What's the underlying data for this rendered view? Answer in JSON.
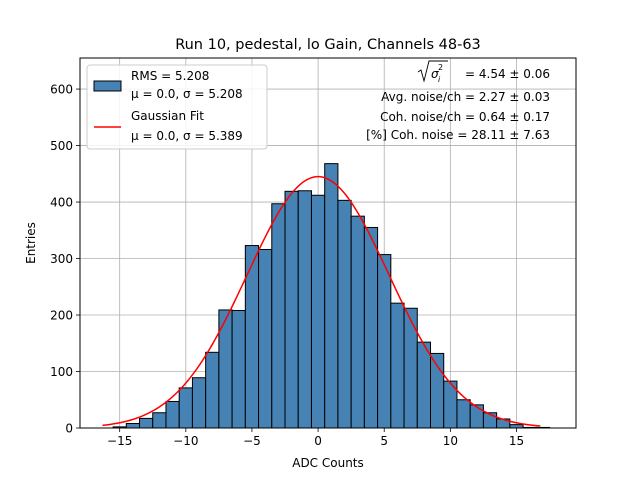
{
  "chart_data": {
    "type": "bar",
    "title": "Run 10, pedestal, lo Gain, Channels 48-63",
    "xlabel": "ADC Counts",
    "ylabel": "Entries",
    "xlim": [
      -18,
      19.5
    ],
    "ylim": [
      0,
      655
    ],
    "grid": true,
    "colors": {
      "bars": "#4682b4",
      "bar_edge": "#000000",
      "fit": "#ff0000"
    },
    "x_ticks": [
      {
        "value": -15,
        "label": "−15"
      },
      {
        "value": -10,
        "label": "−10"
      },
      {
        "value": -5,
        "label": "−5"
      },
      {
        "value": 0,
        "label": "0"
      },
      {
        "value": 5,
        "label": "5"
      },
      {
        "value": 10,
        "label": "10"
      },
      {
        "value": 15,
        "label": "15"
      }
    ],
    "y_ticks": [
      {
        "value": 0,
        "label": "0"
      },
      {
        "value": 100,
        "label": "100"
      },
      {
        "value": 200,
        "label": "200"
      },
      {
        "value": 300,
        "label": "300"
      },
      {
        "value": 400,
        "label": "400"
      },
      {
        "value": 500,
        "label": "500"
      },
      {
        "value": 600,
        "label": "600"
      }
    ],
    "histogram": {
      "name": "RMS = 5.208",
      "bin_edges": [
        -16.5,
        -15.5,
        -14.5,
        -13.5,
        -12.5,
        -11.5,
        -10.5,
        -9.5,
        -8.5,
        -7.5,
        -6.5,
        -5.5,
        -4.5,
        -3.5,
        -2.5,
        -1.5,
        -0.5,
        0.5,
        1.5,
        2.5,
        3.5,
        4.5,
        5.5,
        6.5,
        7.5,
        8.5,
        9.5,
        10.5,
        11.5,
        12.5,
        13.5,
        14.5,
        15.5,
        16.5,
        17.5
      ],
      "counts": [
        0,
        2,
        8,
        17,
        27,
        47,
        71,
        89,
        134,
        209,
        208,
        323,
        316,
        397,
        419,
        420,
        412,
        468,
        403,
        375,
        355,
        307,
        221,
        212,
        152,
        132,
        83,
        50,
        41,
        27,
        16,
        6,
        1,
        1
      ]
    },
    "fit": {
      "name": "Gaussian Fit",
      "mu": 0.0,
      "sigma": 5.389,
      "amplitude": 445,
      "x_range": [
        -16.3,
        16.8
      ]
    },
    "legend": {
      "position": "top-left",
      "entries": [
        {
          "line1": "RMS = 5.208",
          "line2": "μ = 0.0, σ = 5.208"
        },
        {
          "line1": "Gaussian Fit",
          "line2": "μ = 0.0, σ = 5.389"
        }
      ]
    },
    "annotations": [
      {
        "rms_value": "= 4.54 ± 0.06"
      },
      {
        "text": "Avg. noise/ch = 2.27 ± 0.03"
      },
      {
        "text": "Coh. noise/ch = 0.64 ± 0.17"
      },
      {
        "text": "[%] Coh. noise = 28.11 ± 7.63"
      }
    ]
  }
}
